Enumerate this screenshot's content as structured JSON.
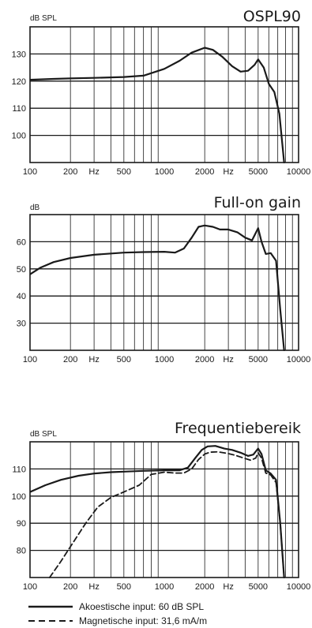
{
  "chart_data": [
    {
      "type": "line",
      "title": "OSPL90",
      "ylabel": "dB SPL",
      "xscale": "log",
      "xlim": [
        100,
        10000
      ],
      "ylim": [
        90,
        140
      ],
      "yticks": [
        100,
        110,
        120,
        130
      ],
      "xtick_labels": [
        "100",
        "200",
        "Hz",
        "500",
        "1000",
        "2000",
        "Hz",
        "5000",
        "10000"
      ],
      "grid": true,
      "series": [
        {
          "style": "solid",
          "x": [
            100,
            150,
            200,
            300,
            500,
            700,
            1000,
            1300,
            1600,
            2000,
            2300,
            2700,
            3200,
            3700,
            4200,
            4700,
            5000,
            5500,
            6000,
            6600,
            7200,
            7800
          ],
          "y": [
            120.5,
            120.8,
            121,
            121.2,
            121.5,
            122,
            124.5,
            127.5,
            130.5,
            132.3,
            131.5,
            129,
            125.5,
            123.5,
            123.8,
            126,
            128,
            125,
            119,
            116,
            108,
            90
          ]
        }
      ]
    },
    {
      "type": "line",
      "title": "Full-on gain",
      "ylabel": "dB",
      "xscale": "log",
      "xlim": [
        100,
        10000
      ],
      "ylim": [
        20,
        70
      ],
      "yticks": [
        30,
        40,
        50,
        60
      ],
      "xtick_labels": [
        "100",
        "200",
        "Hz",
        "500",
        "1000",
        "2000",
        "Hz",
        "5000",
        "10000"
      ],
      "grid": true,
      "series": [
        {
          "style": "solid",
          "x": [
            100,
            120,
            150,
            200,
            300,
            500,
            700,
            1000,
            1200,
            1400,
            1600,
            1800,
            2000,
            2300,
            2600,
            3000,
            3500,
            4000,
            4500,
            5000,
            5300,
            5700,
            6200,
            6800,
            7300,
            7800
          ],
          "y": [
            48,
            50.5,
            52.5,
            54,
            55.2,
            56,
            56.2,
            56.3,
            56,
            57.5,
            61.5,
            65.5,
            66,
            65.5,
            64.5,
            64.5,
            63.5,
            61.5,
            60.5,
            65,
            60,
            55.5,
            55.8,
            53,
            35,
            20
          ]
        }
      ]
    },
    {
      "type": "line",
      "title": "Frequentiebereik",
      "ylabel": "dB SPL",
      "xscale": "log",
      "xlim": [
        100,
        10000
      ],
      "ylim": [
        70,
        120
      ],
      "yticks": [
        80,
        90,
        100,
        110
      ],
      "xtick_labels": [
        "100",
        "200",
        "Hz",
        "500",
        "1000",
        "2000",
        "Hz",
        "5000",
        "10000"
      ],
      "grid": true,
      "legend": "bottom",
      "series": [
        {
          "name": "Akoestische input: 60 dB SPL",
          "style": "solid",
          "x": [
            100,
            130,
            170,
            230,
            300,
            400,
            500,
            700,
            1000,
            1300,
            1500,
            1700,
            1900,
            2100,
            2400,
            2800,
            3200,
            3700,
            4200,
            4600,
            5000,
            5300,
            5700,
            6200,
            6800,
            7300,
            7800
          ],
          "y": [
            101.5,
            104,
            106,
            107.5,
            108.3,
            108.8,
            109,
            109.3,
            109.5,
            109.5,
            110.5,
            114,
            117,
            118.3,
            118.5,
            117.5,
            117,
            116,
            114.8,
            115.3,
            117.5,
            115.5,
            109.5,
            108.3,
            106,
            90,
            70
          ]
        },
        {
          "name": "Magnetische input: 31,6 mA/m",
          "style": "dashed",
          "x": [
            140,
            170,
            210,
            260,
            320,
            400,
            500,
            650,
            800,
            1000,
            1200,
            1400,
            1600,
            1800,
            2000,
            2200,
            2500,
            2900,
            3400,
            3900,
            4400,
            4800,
            5000,
            5300,
            5700,
            6200,
            6800,
            7300,
            7800
          ],
          "y": [
            70,
            76,
            83,
            90,
            96,
            99.5,
            101.5,
            104,
            108,
            108.8,
            108.5,
            108.5,
            110,
            113.5,
            115.5,
            116.2,
            116.3,
            115.8,
            115,
            114,
            113.2,
            114,
            116,
            114,
            108.5,
            107.8,
            105,
            90,
            70
          ]
        }
      ]
    }
  ],
  "legend": {
    "solid_label": "Akoestische input: 60 dB SPL",
    "dashed_label": "Magnetische input: 31,6 mA/m"
  }
}
